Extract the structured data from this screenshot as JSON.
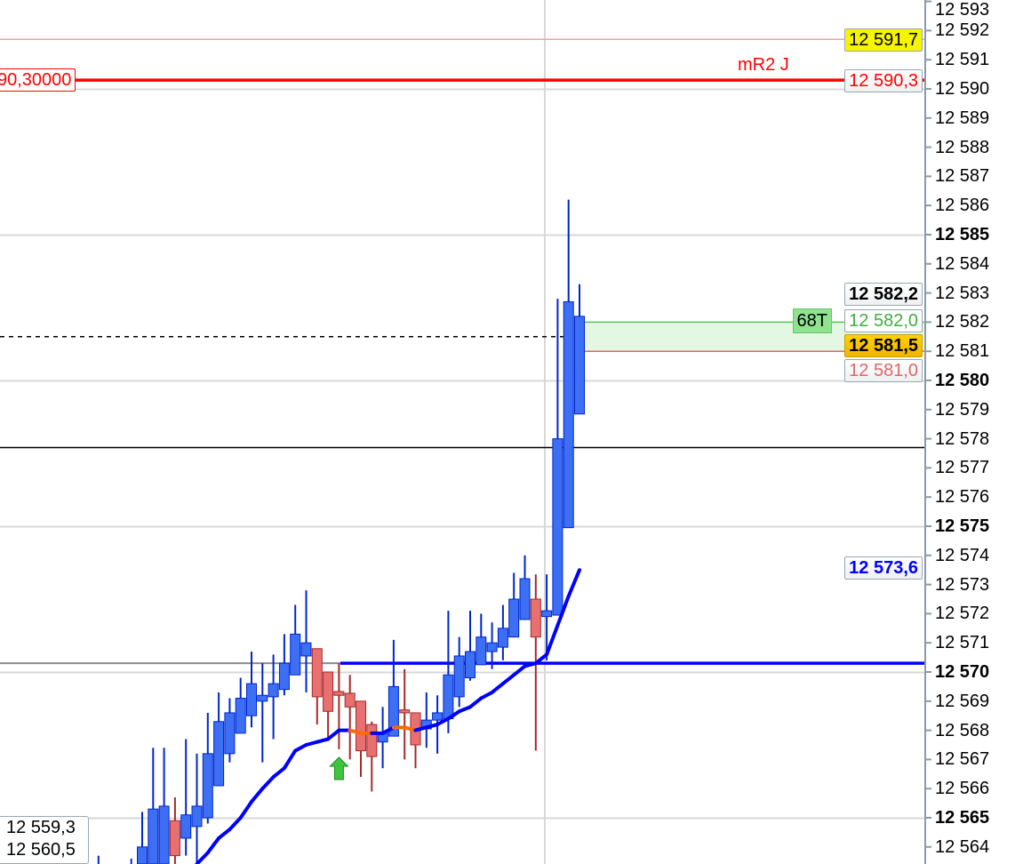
{
  "chart_data": {
    "type": "candlestick",
    "title": "",
    "ylim": [
      12563.7,
      12593.3
    ],
    "grid": true,
    "y_ticks": [
      {
        "value": 12593,
        "label": "12 593"
      },
      {
        "value": 12592,
        "label": "12 592"
      },
      {
        "value": 12591,
        "label": "12 591"
      },
      {
        "value": 12590,
        "label": "12 590"
      },
      {
        "value": 12589,
        "label": "12 589"
      },
      {
        "value": 12588,
        "label": "12 588"
      },
      {
        "value": 12587,
        "label": "12 587"
      },
      {
        "value": 12586,
        "label": "12 586"
      },
      {
        "value": 12585,
        "label": "12 585",
        "bold": true
      },
      {
        "value": 12584,
        "label": "12 584"
      },
      {
        "value": 12583,
        "label": "12 583"
      },
      {
        "value": 12582,
        "label": "12 582"
      },
      {
        "value": 12581,
        "label": "12 581"
      },
      {
        "value": 12580,
        "label": "12 580",
        "bold": true
      },
      {
        "value": 12579,
        "label": "12 579"
      },
      {
        "value": 12578,
        "label": "12 578"
      },
      {
        "value": 12577,
        "label": "12 577"
      },
      {
        "value": 12576,
        "label": "12 576"
      },
      {
        "value": 12575,
        "label": "12 575",
        "bold": true
      },
      {
        "value": 12574,
        "label": "12 574"
      },
      {
        "value": 12573,
        "label": "12 573"
      },
      {
        "value": 12572,
        "label": "12 572"
      },
      {
        "value": 12571,
        "label": "12 571"
      },
      {
        "value": 12570,
        "label": "12 570",
        "bold": true
      },
      {
        "value": 12569,
        "label": "12 569"
      },
      {
        "value": 12568,
        "label": "12 568"
      },
      {
        "value": 12567,
        "label": "12 567"
      },
      {
        "value": 12566,
        "label": "12 566"
      },
      {
        "value": 12565,
        "label": "12 565",
        "bold": true
      },
      {
        "value": 12564,
        "label": "12 564"
      }
    ],
    "candles": [
      [
        12562.0,
        12563.7,
        12561.0,
        12562.5
      ],
      null,
      null,
      [
        12562.0,
        12563.6,
        12561.0,
        12562.5
      ],
      [
        12562.0,
        12565.2,
        12561.5,
        12564.0
      ],
      [
        12562.5,
        12567.4,
        12562.0,
        12565.3
      ],
      [
        12563.0,
        12567.4,
        12562.5,
        12565.4
      ],
      [
        12564.9,
        12565.7,
        12562.5,
        12563.7
      ],
      [
        12564.3,
        12567.7,
        12563.7,
        12565.1
      ],
      [
        12564.7,
        12567.2,
        12563.4,
        12565.4
      ],
      [
        12565.0,
        12568.6,
        12564.8,
        12567.2
      ],
      [
        12566.1,
        12569.3,
        12566.1,
        12568.3
      ],
      [
        12567.2,
        12569.1,
        12566.9,
        12568.6
      ],
      [
        12567.9,
        12569.8,
        12567.9,
        12569.1
      ],
      [
        12568.5,
        12570.7,
        12568.1,
        12569.6
      ],
      [
        12569.0,
        12570.3,
        12566.9,
        12569.2
      ],
      [
        12569.15,
        12570.6,
        12567.7,
        12569.6
      ],
      [
        12569.4,
        12571.3,
        12569.2,
        12570.3
      ],
      [
        12569.9,
        12572.3,
        12569.9,
        12571.3
      ],
      [
        12570.55,
        12572.8,
        12569.3,
        12571.0
      ],
      [
        12570.8,
        12570.8,
        12568.2,
        12569.15
      ],
      [
        12570.0,
        12570.0,
        12567.7,
        12568.65
      ],
      [
        12569.33,
        12570.3,
        12567.35,
        12569.2
      ],
      [
        12569.27,
        12569.9,
        12567.0,
        12568.8
      ],
      [
        12569.0,
        12569.0,
        12566.4,
        12567.3
      ],
      [
        12568.2,
        12568.3,
        12565.9,
        12567.1
      ],
      [
        12567.6,
        12568.8,
        12566.7,
        12567.9
      ],
      [
        12567.8,
        12571.1,
        12567.8,
        12569.5
      ],
      [
        12568.7,
        12570.1,
        12567.0,
        12568.6
      ],
      [
        12568.6,
        12568.6,
        12566.7,
        12567.5
      ],
      [
        12568.05,
        12569.3,
        12567.4,
        12568.35
      ],
      [
        12568.35,
        12569.2,
        12567.2,
        12568.6
      ],
      [
        12568.4,
        12572.1,
        12567.9,
        12569.9
      ],
      [
        12569.15,
        12571.2,
        12568.8,
        12570.55
      ],
      [
        12569.8,
        12572.1,
        12569.7,
        12570.7
      ],
      [
        12570.25,
        12572.0,
        12570.25,
        12571.2
      ],
      [
        12570.7,
        12571.7,
        12570.1,
        12571.0
      ],
      [
        12570.85,
        12572.3,
        12570.4,
        12571.5
      ],
      [
        12571.2,
        12573.4,
        12571.2,
        12572.5
      ],
      [
        12571.8,
        12574.0,
        12571.8,
        12573.2
      ],
      [
        12572.5,
        12573.35,
        12567.3,
        12571.2
      ],
      [
        12571.9,
        12573.35,
        12570.4,
        12572.1
      ],
      [
        12571.95,
        12582.8,
        12571.95,
        12578.0
      ],
      [
        12574.95,
        12586.2,
        12574.95,
        12582.7
      ],
      [
        12578.85,
        12583.3,
        12578.85,
        12582.2
      ]
    ],
    "moving_average": {
      "start_index": 9,
      "values": [
        12563.4,
        12563.8,
        12564.3,
        12564.6,
        12565.0,
        12565.55,
        12566.0,
        12566.4,
        12566.7,
        12567.3,
        12567.5,
        12567.6,
        12567.7,
        12568.0,
        12568.0,
        12567.9,
        12567.9,
        12567.9,
        12568.1,
        12568.1,
        12568.0,
        12568.1,
        12568.2,
        12568.4,
        12568.65,
        12568.8,
        12569.1,
        12569.3,
        12569.6,
        12569.9,
        12570.2,
        12570.3,
        12570.6,
        12571.6,
        12572.6,
        12573.5
      ],
      "falling_segments_end_index": [
        24,
        25,
        28,
        29
      ],
      "color": "#0000ff",
      "falling_color": "#ff6a00"
    },
    "colors": {
      "up": "#3d6ff5",
      "up_border": "#0026cc",
      "down": "#e87070",
      "down_border": "#a52a2a"
    },
    "levels": {
      "pink_line": 12591.7,
      "mr2_line": 12590.3,
      "current_price": 12581.5,
      "black_line": 12577.7,
      "support_line": 12570.3,
      "zone_top": 12582.0,
      "zone_bottom": 12581.0
    },
    "buy_signal_index": 22
  },
  "labels": {
    "pink": "12 591,7",
    "mr2": "12 590,3",
    "mr2_left": "90,30000",
    "mr2_name": "mR2 J",
    "last": "12 582,2",
    "zone_top": "12 582,0",
    "ticks": "68T",
    "current": "12 581,5",
    "zone_bottom": "12 581,0",
    "ma": "12 573,6",
    "low1": "12 559,3",
    "low2": "12 560,5"
  }
}
